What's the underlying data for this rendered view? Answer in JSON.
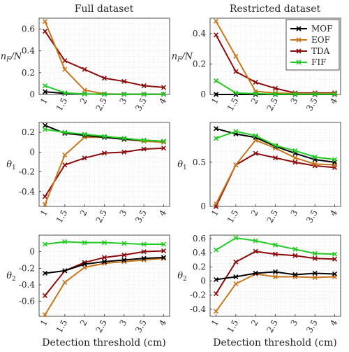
{
  "colors": {
    "MOF": "#000000",
    "EOF": "#c8761c",
    "TDA": "#8b0a0a",
    "FIF": "#22cc22",
    "grid": "#d8d8d8",
    "axis": "#262626"
  },
  "x_tick_labels": [
    "1",
    "1.5",
    "2",
    "2.5",
    "3",
    "3.5",
    "4"
  ],
  "column_titles": [
    "Full dataset",
    "Restricted dataset"
  ],
  "xlabel": "Detection threshold (cm)",
  "chart_data": [
    {
      "type": "line",
      "title": "Full dataset",
      "row": 0,
      "col": 0,
      "ylabel": "n_F/N",
      "ylim": [
        0,
        0.7
      ],
      "yticks": [
        0,
        0.2,
        0.4,
        0.6
      ],
      "x": [
        1,
        1.5,
        2,
        2.5,
        3,
        3.5,
        4
      ],
      "xlim": [
        0.85,
        4.15
      ],
      "series": [
        {
          "name": "MOF",
          "values": [
            0.025,
            0.01,
            0.005,
            0.002,
            0.002,
            0.002,
            0.002
          ]
        },
        {
          "name": "EOF",
          "values": [
            0.67,
            0.23,
            0.04,
            0.005,
            0.002,
            0.002,
            0.002
          ]
        },
        {
          "name": "TDA",
          "values": [
            0.58,
            0.31,
            0.23,
            0.15,
            0.12,
            0.08,
            0.065
          ]
        },
        {
          "name": "FIF",
          "values": [
            0.08,
            0.015,
            0.004,
            0.002,
            0.002,
            0.002,
            0.002
          ]
        }
      ]
    },
    {
      "type": "line",
      "title": "Restricted dataset",
      "row": 0,
      "col": 1,
      "ylabel": "n_F/N",
      "ylim": [
        0,
        0.5
      ],
      "yticks": [
        0,
        0.2,
        0.4
      ],
      "x": [
        1,
        1.5,
        2,
        2.5,
        3,
        3.5,
        4
      ],
      "xlim": [
        0.85,
        4.15
      ],
      "series": [
        {
          "name": "MOF",
          "values": [
            0.0,
            0.0,
            0.0,
            0.0,
            0.0,
            0.0,
            0.0
          ]
        },
        {
          "name": "EOF",
          "values": [
            0.48,
            0.25,
            0.02,
            0.01,
            0.005,
            0.005,
            0.005
          ]
        },
        {
          "name": "TDA",
          "values": [
            0.39,
            0.15,
            0.08,
            0.04,
            0.01,
            0.01,
            0.01
          ]
        },
        {
          "name": "FIF",
          "values": [
            0.09,
            0.01,
            0.005,
            0.002,
            0.002,
            0.002,
            0.002
          ]
        }
      ]
    },
    {
      "type": "line",
      "row": 1,
      "col": 0,
      "ylabel": "θ_1",
      "ylim": [
        -0.55,
        0.3
      ],
      "yticks": [
        -0.4,
        -0.2,
        0,
        0.2
      ],
      "x": [
        1,
        1.5,
        2,
        2.5,
        3,
        3.5,
        4
      ],
      "xlim": [
        0.85,
        4.15
      ],
      "series": [
        {
          "name": "MOF",
          "values": [
            0.27,
            0.19,
            0.17,
            0.15,
            0.13,
            0.12,
            0.11
          ]
        },
        {
          "name": "EOF",
          "values": [
            -0.53,
            -0.03,
            0.15,
            0.15,
            0.13,
            0.11,
            0.1
          ]
        },
        {
          "name": "TDA",
          "values": [
            -0.45,
            -0.13,
            -0.06,
            -0.01,
            0.0,
            0.03,
            0.04
          ]
        },
        {
          "name": "FIF",
          "values": [
            0.23,
            0.2,
            0.18,
            0.16,
            0.14,
            0.12,
            0.11
          ]
        }
      ]
    },
    {
      "type": "line",
      "row": 1,
      "col": 1,
      "ylabel": "θ_1",
      "ylim": [
        0,
        0.95
      ],
      "yticks": [
        0,
        0.5
      ],
      "x": [
        1,
        1.5,
        2,
        2.5,
        3,
        3.5,
        4
      ],
      "xlim": [
        0.85,
        4.15
      ],
      "series": [
        {
          "name": "MOF",
          "values": [
            0.88,
            0.82,
            0.78,
            0.68,
            0.6,
            0.53,
            0.5
          ]
        },
        {
          "name": "EOF",
          "values": [
            0.03,
            0.47,
            0.75,
            0.66,
            0.55,
            0.48,
            0.47
          ]
        },
        {
          "name": "TDA",
          "values": [
            0.0,
            0.47,
            0.6,
            0.55,
            0.5,
            0.46,
            0.44
          ]
        },
        {
          "name": "FIF",
          "values": [
            0.77,
            0.85,
            0.8,
            0.69,
            0.63,
            0.56,
            0.53
          ]
        }
      ]
    },
    {
      "type": "line",
      "row": 2,
      "col": 0,
      "ylabel": "θ_2",
      "ylim": [
        -0.78,
        0.2
      ],
      "yticks": [
        -0.6,
        -0.4,
        -0.2,
        0
      ],
      "x": [
        1,
        1.5,
        2,
        2.5,
        3,
        3.5,
        4
      ],
      "xlim": [
        0.85,
        4.15
      ],
      "series": [
        {
          "name": "MOF",
          "values": [
            -0.26,
            -0.23,
            -0.15,
            -0.12,
            -0.1,
            -0.08,
            -0.07
          ]
        },
        {
          "name": "EOF",
          "values": [
            -0.76,
            -0.37,
            -0.19,
            -0.14,
            -0.12,
            -0.1,
            -0.08
          ]
        },
        {
          "name": "TDA",
          "values": [
            -0.53,
            -0.23,
            -0.13,
            -0.07,
            -0.04,
            0.0,
            0.01
          ]
        },
        {
          "name": "FIF",
          "values": [
            0.09,
            0.12,
            0.11,
            0.11,
            0.1,
            0.09,
            0.09
          ]
        }
      ]
    },
    {
      "type": "line",
      "row": 2,
      "col": 1,
      "ylabel": "θ_2",
      "ylim": [
        -0.5,
        0.65
      ],
      "yticks": [
        -0.4,
        -0.2,
        0,
        0.2,
        0.4,
        0.6
      ],
      "x": [
        1,
        1.5,
        2,
        2.5,
        3,
        3.5,
        4
      ],
      "xlim": [
        0.85,
        4.15
      ],
      "series": [
        {
          "name": "MOF",
          "values": [
            0.02,
            0.06,
            0.11,
            0.13,
            0.09,
            0.11,
            0.1
          ]
        },
        {
          "name": "EOF",
          "values": [
            -0.43,
            -0.04,
            0.1,
            0.06,
            0.06,
            0.05,
            0.06
          ]
        },
        {
          "name": "TDA",
          "values": [
            -0.18,
            0.27,
            0.42,
            0.38,
            0.36,
            0.32,
            0.31
          ]
        },
        {
          "name": "FIF",
          "values": [
            0.44,
            0.61,
            0.57,
            0.51,
            0.45,
            0.39,
            0.38
          ]
        }
      ]
    }
  ],
  "legend": {
    "placement": "top-right",
    "entries": [
      "MOF",
      "EOF",
      "TDA",
      "FIF"
    ]
  }
}
